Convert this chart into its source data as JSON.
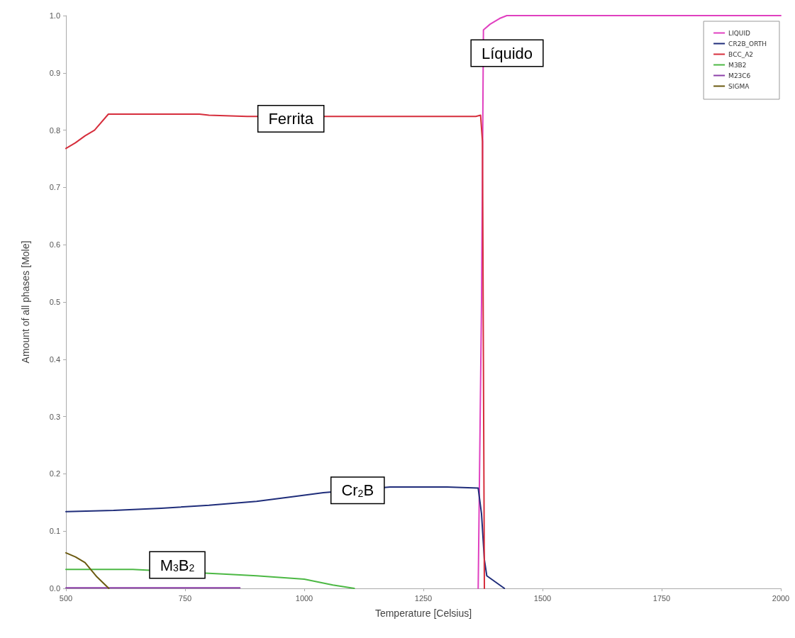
{
  "chart_data": {
    "type": "line",
    "xlabel": "Temperature [Celsius]",
    "ylabel": "Amount of all phases [Mole]",
    "xlim": [
      500,
      2000
    ],
    "xticks": [
      500,
      750,
      1000,
      1250,
      1500,
      1750,
      2000
    ],
    "ylim": [
      0,
      1
    ],
    "yticks": [
      {
        "value": 0,
        "label": "0.0"
      },
      {
        "value": 0.1,
        "label": "0.1"
      },
      {
        "value": 0.2,
        "label": "0.2"
      },
      {
        "value": 0.3,
        "label": "0.3"
      },
      {
        "value": 0.4,
        "label": "0.4"
      },
      {
        "value": 0.5,
        "label": "0.5"
      },
      {
        "value": 0.6,
        "label": "0.6"
      },
      {
        "value": 0.7,
        "label": "0.7"
      },
      {
        "value": 0.8,
        "label": "0.8"
      },
      {
        "value": 0.9,
        "label": "0.9"
      },
      {
        "value": 1,
        "label": "1.0"
      }
    ],
    "grid": false,
    "legend": "top right",
    "marker": "none",
    "line_style": "solid",
    "series": [
      {
        "name": "LIQUID",
        "color": "#e040c0",
        "x": [
          1365,
          1372,
          1376,
          1390,
          1410,
          1425,
          1500,
          1750,
          2000
        ],
        "values": [
          0,
          0.5,
          0.975,
          0.985,
          0.995,
          1.0,
          1.0,
          1.0,
          1.0
        ]
      },
      {
        "name": "CR2B_ORTH",
        "color": "#1f2d7a",
        "x": [
          500,
          600,
          700,
          800,
          900,
          975,
          1040,
          1180,
          1300,
          1365,
          1372,
          1378,
          1383,
          1420
        ],
        "values": [
          0.134,
          0.136,
          0.14,
          0.145,
          0.152,
          0.16,
          0.167,
          0.177,
          0.177,
          0.175,
          0.13,
          0.05,
          0.022,
          0
        ]
      },
      {
        "name": "BCC_A2",
        "color": "#d62e3c",
        "x": [
          500,
          520,
          540,
          560,
          589,
          780,
          800,
          880,
          1360,
          1370,
          1374,
          1378
        ],
        "values": [
          0.768,
          0.778,
          0.79,
          0.8,
          0.828,
          0.828,
          0.826,
          0.824,
          0.824,
          0.826,
          0.78,
          0
        ]
      },
      {
        "name": "M3B2",
        "color": "#4cb844",
        "x": [
          500,
          640,
          830,
          900,
          1000,
          1060,
          1105
        ],
        "values": [
          0.033,
          0.033,
          0.025,
          0.022,
          0.016,
          0.006,
          0
        ]
      },
      {
        "name": "M23C6",
        "color": "#8c3fa8",
        "x": [
          500,
          865
        ],
        "values": [
          0.001,
          0.001
        ]
      },
      {
        "name": "SIGMA",
        "color": "#6b5a10",
        "x": [
          500,
          520,
          540,
          565,
          590
        ],
        "values": [
          0.062,
          0.055,
          0.045,
          0.02,
          0
        ]
      }
    ],
    "annotations": [
      "Líquido",
      {
        "text": "Ferrita",
        "x": 972,
        "y": 0.82
      },
      {
        "text": "Cr$_{2}$B",
        "x": 1112,
        "y": 0.171
      },
      "M$_{3}$B$_{2}$"
    ]
  }
}
